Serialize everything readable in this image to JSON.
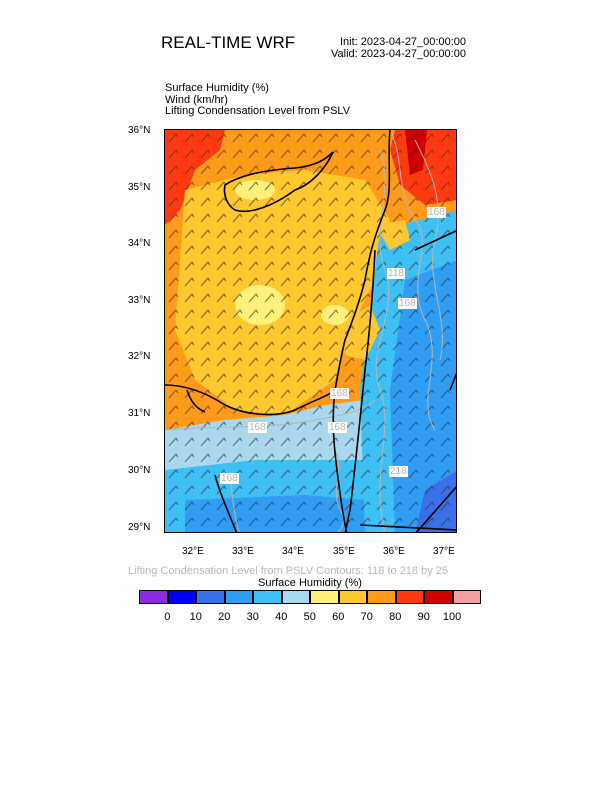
{
  "header": {
    "title": "REAL-TIME WRF",
    "init": "Init: 2023-04-27_00:00:00",
    "valid": "Valid: 2023-04-27_00:00:00"
  },
  "fields": [
    "Surface Humidity   (%)",
    "Wind   (km/hr)",
    "Lifting Condensation Level from PSLV"
  ],
  "map": {
    "lat_labels": [
      "36°N",
      "35°N",
      "34°N",
      "33°N",
      "32°N",
      "31°N",
      "30°N",
      "29°N"
    ],
    "lon_labels": [
      "32°E",
      "33°E",
      "34°E",
      "35°E",
      "36°E",
      "37°E"
    ],
    "contour_labels": [
      "168",
      "118",
      "168",
      "168",
      "168",
      "168",
      "218",
      "168"
    ]
  },
  "contour_note": "Lifting Condensation Level from PSLV Contours: 118 to 218 by 25",
  "colorbar": {
    "title": "Surface Humidity  (%)",
    "labels": [
      "0",
      "10",
      "20",
      "30",
      "40",
      "50",
      "60",
      "70",
      "80",
      "90",
      "100"
    ],
    "colors": [
      "#8a2be2",
      "#0000ff",
      "#3a6fe8",
      "#2f9df2",
      "#3fc0f5",
      "#a9d8ee",
      "#fff07a",
      "#ffc830",
      "#ff9a1a",
      "#ff3a10",
      "#d00000",
      "#f5a0a0"
    ]
  }
}
